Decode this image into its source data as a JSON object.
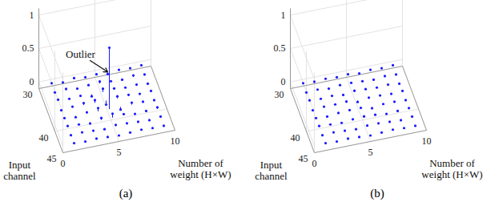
{
  "chart_data": [
    {
      "type": "stem3d",
      "title": "(a)",
      "color": "#1a1aff",
      "grid": true,
      "xlabel": "Number of\nweight (H×W)",
      "ylabel": "Input\nchannel",
      "annotations": [
        {
          "text": "Outlier"
        }
      ],
      "x": [
        1,
        2,
        3,
        4,
        5,
        6,
        7,
        8,
        9
      ],
      "y": [
        31,
        33,
        35,
        37,
        39,
        41,
        43,
        45
      ],
      "values": [
        [
          0.01,
          -0.01,
          0.02,
          0.0,
          0.01,
          -0.02,
          0.01,
          0.0,
          0.01
        ],
        [
          0.0,
          0.02,
          -0.01,
          0.01,
          0.03,
          0.0,
          -0.01,
          0.02,
          0.0
        ],
        [
          0.02,
          0.0,
          0.01,
          -0.03,
          0.05,
          0.02,
          0.0,
          0.01,
          -0.01
        ],
        [
          -0.01,
          0.01,
          0.03,
          0.04,
          -0.06,
          0.03,
          0.02,
          0.0,
          0.01
        ],
        [
          0.0,
          -0.02,
          0.02,
          0.05,
          0.92,
          -0.04,
          0.03,
          0.01,
          0.0
        ],
        [
          0.01,
          0.0,
          -0.02,
          0.03,
          0.06,
          0.02,
          -0.01,
          0.0,
          0.02
        ],
        [
          0.0,
          0.01,
          0.0,
          -0.01,
          0.02,
          0.01,
          0.0,
          -0.01,
          0.01
        ],
        [
          0.01,
          0.0,
          0.01,
          0.0,
          -0.01,
          0.0,
          0.01,
          0.0,
          0.0
        ]
      ],
      "xlim": [
        0,
        10
      ],
      "xticks": [
        0,
        5,
        10
      ],
      "ylim": [
        30,
        45
      ],
      "yticks": [
        30,
        40,
        45
      ],
      "zlim": [
        -0.1,
        1.1
      ],
      "zticks": [
        0,
        0.5,
        1
      ]
    },
    {
      "type": "stem3d",
      "title": "(b)",
      "color": "#1a1aff",
      "grid": true,
      "xlabel": "Number of\nweight (H×W)",
      "ylabel": "Input\nchannel",
      "x": [
        1,
        2,
        3,
        4,
        5,
        6,
        7,
        8,
        9
      ],
      "y": [
        31,
        33,
        35,
        37,
        39,
        41,
        43,
        45
      ],
      "values": [
        [
          0.01,
          0.0,
          0.01,
          0.0,
          0.01,
          -0.01,
          0.01,
          0.0,
          0.01
        ],
        [
          0.0,
          0.01,
          -0.01,
          0.01,
          0.01,
          0.0,
          -0.01,
          0.01,
          0.0
        ],
        [
          0.01,
          0.0,
          0.01,
          -0.01,
          0.02,
          0.01,
          0.0,
          0.01,
          -0.01
        ],
        [
          -0.01,
          0.01,
          0.01,
          0.02,
          -0.02,
          0.01,
          0.01,
          0.0,
          0.01
        ],
        [
          0.0,
          -0.01,
          0.01,
          0.02,
          0.02,
          -0.02,
          0.01,
          0.01,
          0.0
        ],
        [
          0.01,
          0.0,
          -0.01,
          0.01,
          0.02,
          0.01,
          -0.01,
          0.0,
          0.01
        ],
        [
          0.0,
          0.01,
          0.0,
          -0.01,
          0.01,
          0.01,
          0.0,
          -0.01,
          0.01
        ],
        [
          0.01,
          0.0,
          0.01,
          0.0,
          -0.01,
          0.0,
          0.01,
          0.0,
          0.0
        ]
      ],
      "xlim": [
        0,
        10
      ],
      "xticks": [
        0,
        5,
        10
      ],
      "ylim": [
        30,
        45
      ],
      "yticks": [
        30,
        40,
        45
      ],
      "zlim": [
        -0.1,
        1.1
      ],
      "zticks": [
        0,
        0.5,
        1
      ]
    }
  ]
}
